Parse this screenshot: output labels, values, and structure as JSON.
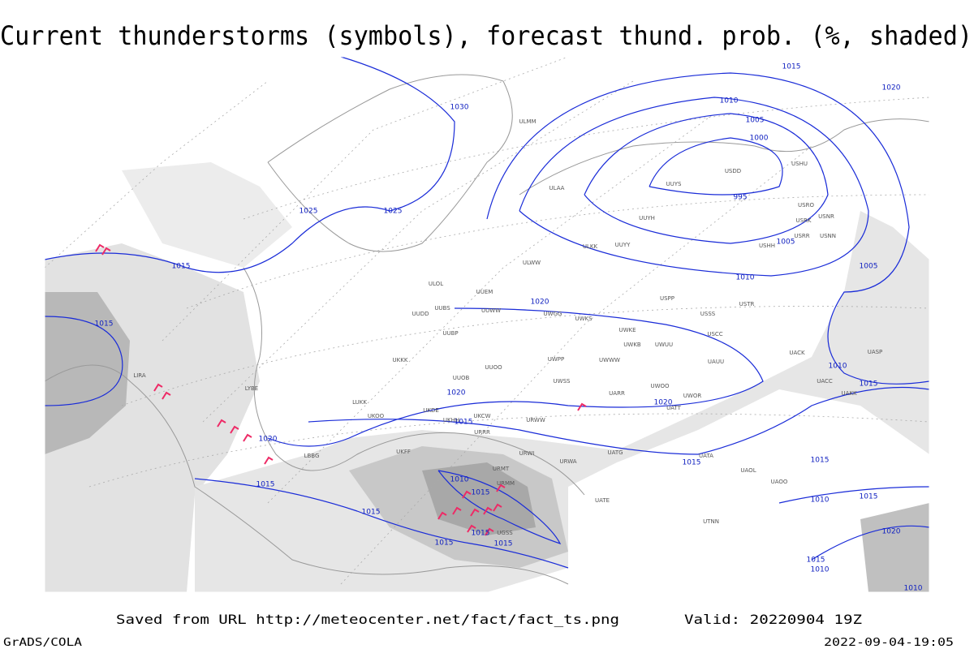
{
  "title": "Current thunderstorms (symbols), forecast thund. prob. (%, shaded)",
  "footer": {
    "saved": "Saved from URL http://meteocenter.net/fact/fact_ts.png",
    "valid": "Valid: 20220904 19Z",
    "software": "GrADS/COLA",
    "timestamp": "2022-09-04-19:05"
  },
  "isobar_labels": [
    1015,
    1020,
    1030,
    1010,
    1005,
    1000,
    995,
    1025,
    1025,
    1005,
    1005,
    1015,
    1010,
    1020,
    1015,
    1010,
    1015,
    1020,
    1020,
    1015,
    1020,
    1015,
    1015,
    1010,
    1015,
    1015,
    1015,
    1010,
    1015,
    1020,
    1015,
    1015,
    1015,
    1015,
    1010,
    1010
  ],
  "stations": [
    "ULMM",
    "UUYS",
    "USDD",
    "USHU",
    "ULAA",
    "UUYH",
    "USRO",
    "USRK",
    "USNR",
    "USRR",
    "USNN",
    "USHH",
    "ULKK",
    "UUYY",
    "ULWW",
    "ULOL",
    "UUEM",
    "UUWW",
    "UWGG",
    "UWKS",
    "USSS",
    "USTR",
    "UUDD",
    "UUBS",
    "USPP",
    "UWKE",
    "USCC",
    "UWKB",
    "UWUU",
    "UUBP",
    "UWPP",
    "UWWW",
    "UUOO",
    "UUOB",
    "UWSS",
    "UARR",
    "UWOO",
    "UWOR",
    "UATT",
    "UACC",
    "UAKK",
    "UACK",
    "UAUU",
    "UASP",
    "UKKK",
    "LIRA",
    "LYBE",
    "LUKK",
    "UKOO",
    "UKDE",
    "UKCW",
    "URWW",
    "URRR",
    "URWI",
    "URWA",
    "UATG",
    "UATA",
    "UAOL",
    "UAOO",
    "UATE",
    "UTNN",
    "URMM",
    "URMT",
    "UKFF",
    "UKHH",
    "LBBG",
    "UGSS"
  ]
}
